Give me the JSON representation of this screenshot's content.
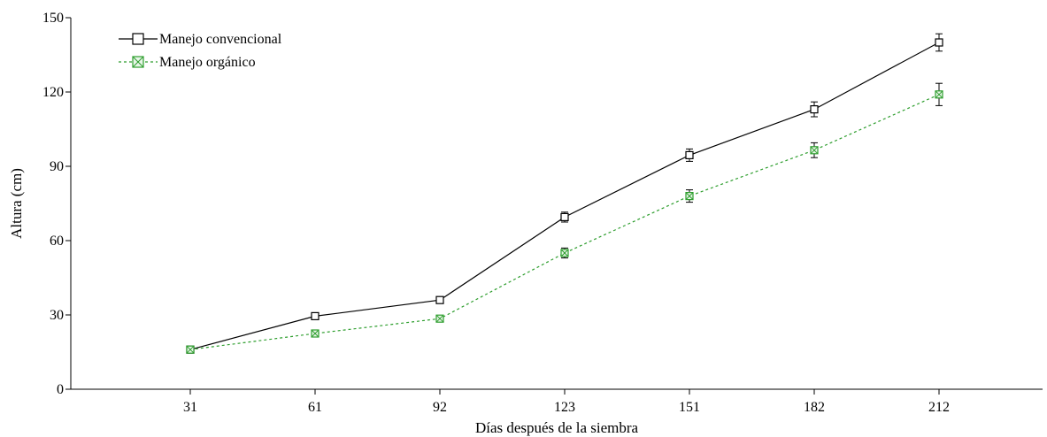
{
  "chart_data": {
    "type": "line",
    "xlabel": "Días después de la siembra",
    "ylabel": "Altura (cm)",
    "ylim": [
      0,
      150
    ],
    "yticks": [
      0,
      30,
      60,
      90,
      120,
      150
    ],
    "categories": [
      "31",
      "61",
      "92",
      "123",
      "151",
      "182",
      "212"
    ],
    "legend_position": "top-left",
    "grid": false,
    "series": [
      {
        "name": "Manejo convencional",
        "color": "#000000",
        "line_style": "solid",
        "marker": "open-square",
        "values": [
          16,
          29.5,
          36,
          69.5,
          94.5,
          113,
          140
        ],
        "errors": [
          1,
          1,
          1,
          2,
          2.5,
          3,
          3.5
        ]
      },
      {
        "name": "Manejo orgánico",
        "color": "#2e9e2e",
        "line_style": "dashed",
        "marker": "crossed-square",
        "values": [
          16,
          22.5,
          28.5,
          55,
          78,
          96.5,
          119
        ],
        "errors": [
          1,
          1,
          1,
          2,
          2.5,
          3,
          4.5
        ]
      }
    ]
  }
}
